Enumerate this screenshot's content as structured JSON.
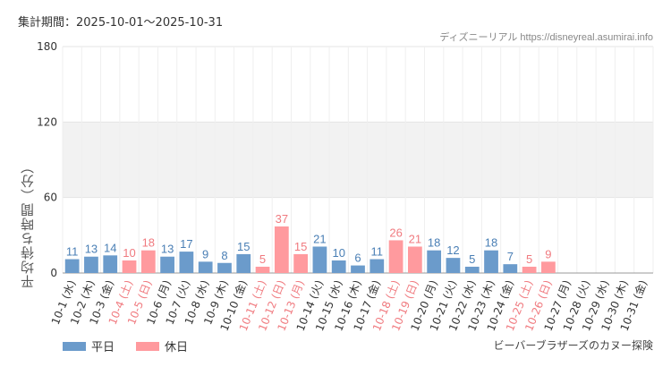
{
  "header": {
    "period": "集計期間：2025-10-01～2025-10-31",
    "credit": "ディズニーリアル https://disneyreal.asumirai.info"
  },
  "footer": {
    "attraction": "ビーバーブラザーズのカヌー探険"
  },
  "colors": {
    "weekday": "#6b9bcb",
    "holiday": "#ff9a9e",
    "holiday_text": "#f07a7f",
    "weekday_text": "#4a7fb5",
    "band": "#f2f2f2",
    "grid": "#e5e5e5"
  },
  "chart_data": {
    "type": "bar",
    "ylabel": "平均待ち時間（分）",
    "ylim": [
      0,
      180
    ],
    "yticks": [
      "0",
      "60",
      "120",
      "180"
    ],
    "shaded_band": [
      60,
      120
    ],
    "grid": true,
    "legend_position": "bottom-left",
    "categories": [
      "10-1 (水)",
      "10-2 (木)",
      "10-3 (金)",
      "10-4 (土)",
      "10-5 (日)",
      "10-6 (月)",
      "10-7 (火)",
      "10-8 (水)",
      "10-9 (木)",
      "10-10 (金)",
      "10-11 (土)",
      "10-12 (日)",
      "10-13 (月)",
      "10-14 (火)",
      "10-15 (水)",
      "10-16 (木)",
      "10-17 (金)",
      "10-18 (土)",
      "10-19 (日)",
      "10-20 (月)",
      "10-21 (火)",
      "10-22 (水)",
      "10-23 (木)",
      "10-24 (金)",
      "10-25 (土)",
      "10-26 (日)",
      "10-27 (月)",
      "10-28 (火)",
      "10-29 (水)",
      "10-30 (木)",
      "10-31 (金)"
    ],
    "values": [
      11,
      13,
      14,
      10,
      18,
      13,
      17,
      9,
      8,
      15,
      5,
      37,
      15,
      21,
      10,
      6,
      11,
      26,
      21,
      18,
      12,
      5,
      18,
      7,
      5,
      9,
      null,
      null,
      null,
      null,
      null
    ],
    "day_type": [
      "weekday",
      "weekday",
      "weekday",
      "holiday",
      "holiday",
      "weekday",
      "weekday",
      "weekday",
      "weekday",
      "weekday",
      "holiday",
      "holiday",
      "holiday",
      "weekday",
      "weekday",
      "weekday",
      "weekday",
      "holiday",
      "holiday",
      "weekday",
      "weekday",
      "weekday",
      "weekday",
      "weekday",
      "holiday",
      "holiday",
      "weekday",
      "weekday",
      "weekday",
      "weekday",
      "weekday"
    ],
    "series": [
      {
        "name": "平日",
        "color": "#6b9bcb"
      },
      {
        "name": "休日",
        "color": "#ff9a9e"
      }
    ]
  }
}
